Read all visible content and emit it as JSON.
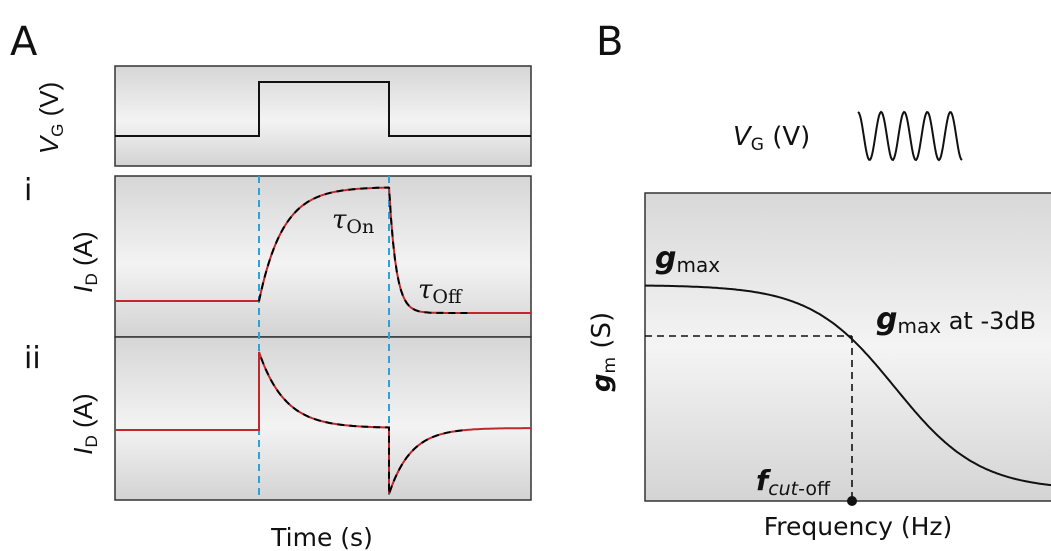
{
  "panels": {
    "a": "A",
    "b": "B"
  },
  "panel_a": {
    "vg_label": {
      "main": "V",
      "sub": "G",
      "unit": " (V)"
    },
    "row_i": "i",
    "row_ii": "ii",
    "id_label": {
      "main": "I",
      "sub": "D",
      "unit": " (A)"
    },
    "tau_on": {
      "main": "τ",
      "sub": "On"
    },
    "tau_off": {
      "main": "τ",
      "sub": "Off"
    },
    "xlabel": "Time (s)"
  },
  "panel_b": {
    "vg_label": {
      "main": "V",
      "sub": "G",
      "unit": " (V)"
    },
    "gm_label": {
      "main": "g",
      "sub": "m",
      "unit": " (S)"
    },
    "gmax_label": {
      "main": "g",
      "sub": "max"
    },
    "gmax_3db_label": {
      "main": "g",
      "sub": "max",
      "suffix": " at -3dB"
    },
    "fcut_label": {
      "main": "f",
      "sub_italic": "cut",
      "sub": "-off"
    },
    "xlabel": "Frequency (Hz)"
  },
  "colors": {
    "response": "#c0282d",
    "fit": "#000000",
    "marker_lines": "#2aa3d8",
    "panel_border": "#333333"
  }
}
